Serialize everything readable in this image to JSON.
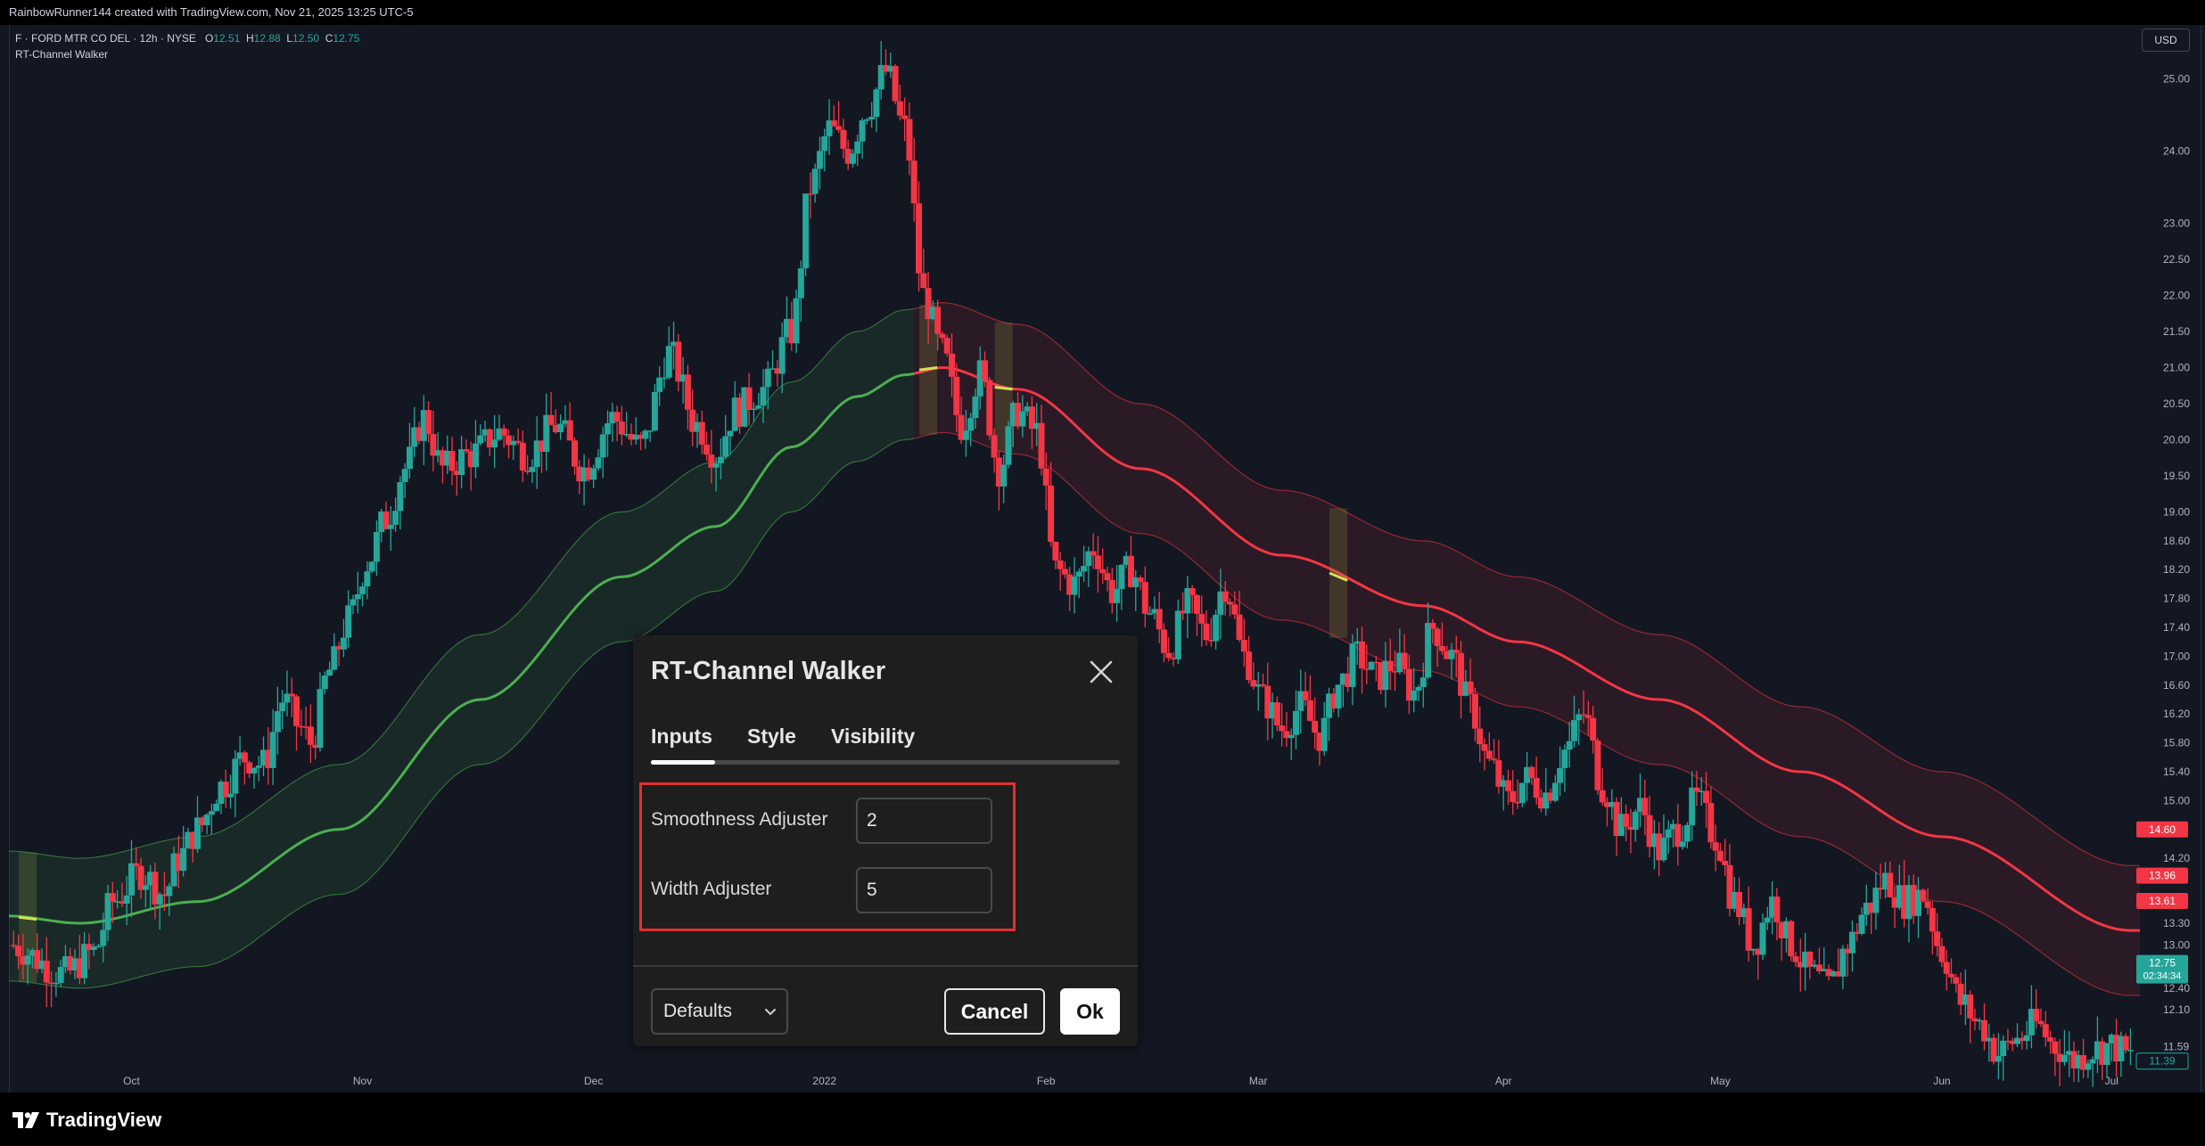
{
  "header": {
    "attribution": "RainbowRunner144 created with TradingView.com, Nov 21, 2025 13:25 UTC-5"
  },
  "legend": {
    "symbol": "F · FORD MTR CO DEL · 12h · NYSE",
    "open_label": "O",
    "open": "12.51",
    "high_label": "H",
    "high": "12.88",
    "low_label": "L",
    "low": "12.50",
    "close_label": "C",
    "close": "12.75",
    "indicator": "RT-Channel Walker"
  },
  "currency_button": "USD",
  "footer": {
    "logo_text": "TradingView"
  },
  "dialog": {
    "title": "RT-Channel Walker",
    "tabs": [
      "Inputs",
      "Style",
      "Visibility"
    ],
    "active_tab": "Inputs",
    "fields": [
      {
        "label": "Smoothness Adjuster",
        "value": "2"
      },
      {
        "label": "Width Adjuster",
        "value": "5"
      }
    ],
    "defaults_label": "Defaults",
    "cancel_label": "Cancel",
    "ok_label": "Ok"
  },
  "colors": {
    "background": "#131722",
    "up_candle": "#26a69a",
    "down_candle": "#f23645",
    "channel_up": "#4caf50",
    "channel_down": "#f23645",
    "channel_transition": "#d4e157"
  },
  "chart_data": {
    "type": "candlestick",
    "title": "",
    "symbol": "F",
    "timeframe": "12h",
    "x_tick_labels": [
      "Oct",
      "Nov",
      "Dec",
      "2022",
      "Feb",
      "Mar",
      "Apr",
      "May",
      "Jun",
      "Jul"
    ],
    "y_tick_labels": [
      "25.00",
      "24.00",
      "23.00",
      "22.50",
      "22.00",
      "21.50",
      "21.00",
      "20.50",
      "20.00",
      "19.50",
      "19.00",
      "18.60",
      "18.20",
      "17.80",
      "17.40",
      "17.00",
      "16.60",
      "16.20",
      "15.80",
      "15.40",
      "15.00",
      "14.20",
      "13.30",
      "13.00",
      "12.40",
      "12.10",
      "11.59"
    ],
    "ylim": [
      11.3,
      25.6
    ],
    "price_tags": [
      {
        "label": "14.60",
        "value": 14.6,
        "color": "#f23645"
      },
      {
        "label": "13.96",
        "value": 13.96,
        "color": "#f23645"
      },
      {
        "label": "13.61",
        "value": 13.61,
        "color": "#f23645"
      },
      {
        "label": "12.75",
        "sublabel": "02:34:34",
        "value": 12.75,
        "color": "#26a69a"
      },
      {
        "label": "11.39",
        "value": 11.39,
        "color": "#26a69a"
      }
    ],
    "price_path": [
      [
        0,
        13.0
      ],
      [
        12,
        12.6
      ],
      [
        18,
        12.9
      ],
      [
        22,
        13.6
      ],
      [
        28,
        14.0
      ],
      [
        33,
        13.7
      ],
      [
        36,
        14.2
      ],
      [
        40,
        14.6
      ],
      [
        45,
        15.2
      ],
      [
        50,
        15.6
      ],
      [
        54,
        15.5
      ],
      [
        58,
        16.4
      ],
      [
        62,
        16.0
      ],
      [
        64,
        15.8
      ],
      [
        68,
        16.8
      ],
      [
        72,
        17.5
      ],
      [
        76,
        18.3
      ],
      [
        80,
        18.9
      ],
      [
        84,
        19.6
      ],
      [
        88,
        20.3
      ],
      [
        92,
        19.6
      ],
      [
        98,
        19.8
      ],
      [
        104,
        20.1
      ],
      [
        110,
        19.8
      ],
      [
        116,
        20.2
      ],
      [
        122,
        19.6
      ],
      [
        128,
        20.3
      ],
      [
        134,
        19.9
      ],
      [
        140,
        21.2
      ],
      [
        146,
        20.2
      ],
      [
        150,
        19.8
      ],
      [
        154,
        20.4
      ],
      [
        160,
        20.7
      ],
      [
        166,
        21.5
      ],
      [
        170,
        23.5
      ],
      [
        174,
        24.3
      ],
      [
        178,
        24.0
      ],
      [
        182,
        24.6
      ],
      [
        186,
        25.1
      ],
      [
        190,
        24.3
      ],
      [
        194,
        22.0
      ],
      [
        198,
        21.2
      ],
      [
        202,
        20.2
      ],
      [
        206,
        20.9
      ],
      [
        210,
        19.6
      ],
      [
        214,
        20.4
      ],
      [
        218,
        20.1
      ],
      [
        222,
        18.2
      ],
      [
        226,
        18.0
      ],
      [
        230,
        18.5
      ],
      [
        234,
        17.9
      ],
      [
        238,
        18.2
      ],
      [
        242,
        17.6
      ],
      [
        246,
        17.1
      ],
      [
        250,
        17.7
      ],
      [
        254,
        17.3
      ],
      [
        258,
        18.0
      ],
      [
        262,
        17.0
      ],
      [
        266,
        16.4
      ],
      [
        270,
        16.0
      ],
      [
        274,
        16.3
      ],
      [
        278,
        15.9
      ],
      [
        282,
        16.6
      ],
      [
        286,
        17.0
      ],
      [
        290,
        16.7
      ],
      [
        294,
        16.9
      ],
      [
        298,
        16.5
      ],
      [
        302,
        17.4
      ],
      [
        306,
        17.0
      ],
      [
        310,
        16.3
      ],
      [
        314,
        15.5
      ],
      [
        318,
        15.0
      ],
      [
        322,
        15.3
      ],
      [
        326,
        15.1
      ],
      [
        330,
        15.7
      ],
      [
        334,
        16.2
      ],
      [
        338,
        15.2
      ],
      [
        342,
        14.6
      ],
      [
        346,
        14.9
      ],
      [
        350,
        14.3
      ],
      [
        354,
        14.6
      ],
      [
        358,
        15.0
      ],
      [
        362,
        14.5
      ],
      [
        366,
        13.6
      ],
      [
        370,
        13.0
      ],
      [
        374,
        13.6
      ],
      [
        378,
        13.0
      ],
      [
        382,
        12.6
      ],
      [
        386,
        12.4
      ],
      [
        390,
        13.0
      ],
      [
        394,
        13.5
      ],
      [
        398,
        13.9
      ],
      [
        402,
        13.6
      ],
      [
        406,
        13.7
      ],
      [
        410,
        12.9
      ],
      [
        414,
        12.2
      ],
      [
        418,
        11.9
      ],
      [
        422,
        11.5
      ],
      [
        426,
        11.7
      ],
      [
        430,
        11.9
      ],
      [
        434,
        11.6
      ],
      [
        438,
        11.4
      ],
      [
        442,
        11.55
      ],
      [
        446,
        11.6
      ],
      [
        450,
        11.45
      ]
    ],
    "channel": {
      "name": "RT-Channel Walker",
      "smoothness": 2,
      "width": 5,
      "midline": [
        [
          0,
          13.4
        ],
        [
          15,
          13.3
        ],
        [
          40,
          13.6
        ],
        [
          70,
          14.6
        ],
        [
          100,
          16.4
        ],
        [
          130,
          18.1
        ],
        [
          150,
          18.8
        ],
        [
          166,
          19.9
        ],
        [
          180,
          20.6
        ],
        [
          190,
          20.9
        ],
        [
          198,
          21.0
        ],
        [
          214,
          20.7
        ],
        [
          240,
          19.6
        ],
        [
          270,
          18.4
        ],
        [
          300,
          17.7
        ],
        [
          320,
          17.2
        ],
        [
          350,
          16.4
        ],
        [
          380,
          15.4
        ],
        [
          410,
          14.5
        ],
        [
          450,
          13.2
        ]
      ],
      "half_width": 0.9,
      "up_segment_end_index": 192,
      "transition_points": [
        4,
        195,
        211,
        282
      ]
    }
  }
}
